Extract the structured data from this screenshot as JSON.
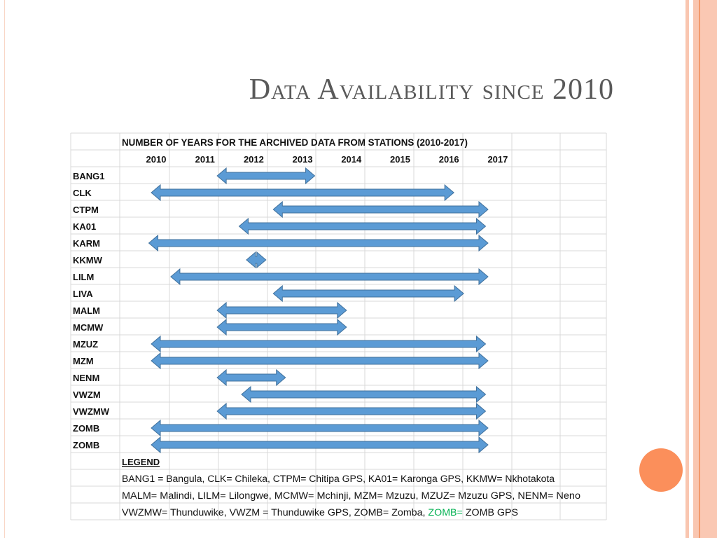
{
  "slide": {
    "title": "Data Availability since 2010",
    "accent_color": "#fb8f5b",
    "stripe_color": "#f9c6b0"
  },
  "chart_data": {
    "type": "gantt",
    "title": "NUMBER OF YEARS FOR THE ARCHIVED DATA FROM STATIONS (2010-2017)",
    "years": [
      "2010",
      "2011",
      "2012",
      "2013",
      "2014",
      "2015",
      "2016",
      "2017"
    ],
    "xlim": [
      2010,
      2017
    ],
    "grid": true,
    "bar_color": "#5b9bd5",
    "series": [
      {
        "station": "BANG1",
        "start": 2011.25,
        "end": 2013.25
      },
      {
        "station": "CLK",
        "start": 2009.9,
        "end": 2016.1
      },
      {
        "station": "CTPM",
        "start": 2012.4,
        "end": 2016.8
      },
      {
        "station": "KA01",
        "start": 2011.7,
        "end": 2016.75
      },
      {
        "station": "KARM",
        "start": 2009.85,
        "end": 2016.8
      },
      {
        "station": "KKMW",
        "start": 2011.85,
        "end": 2012.25
      },
      {
        "station": "LILM",
        "start": 2010.3,
        "end": 2016.8
      },
      {
        "station": "LIVA",
        "start": 2012.4,
        "end": 2016.3
      },
      {
        "station": "MALM",
        "start": 2011.25,
        "end": 2013.9
      },
      {
        "station": "MCMW",
        "start": 2011.25,
        "end": 2013.9
      },
      {
        "station": "MZUZ",
        "start": 2009.9,
        "end": 2016.75
      },
      {
        "station": "MZM",
        "start": 2009.9,
        "end": 2016.8
      },
      {
        "station": "NENM",
        "start": 2011.25,
        "end": 2012.65
      },
      {
        "station": "VWZM",
        "start": 2011.75,
        "end": 2016.75
      },
      {
        "station": "VWZMW",
        "start": 2011.25,
        "end": 2016.75
      },
      {
        "station": "ZOMB",
        "start": 2009.9,
        "end": 2016.8
      },
      {
        "station": "ZOMB",
        "start": 2009.9,
        "end": 2016.8
      }
    ],
    "legend": {
      "heading": "LEGEND",
      "lines": [
        [
          {
            "text": "BANG1 = Bangula, CLK= Chileka, CTPM= Chitipa GPS, KA01= Karonga GPS, KKMW= Nkhotakota"
          }
        ],
        [
          {
            "text": "MALM= Malindi, LILM= Lilongwe, MCMW= Mchinji, MZM= Mzuzu, MZUZ= Mzuzu GPS, NENM= Neno"
          }
        ],
        [
          {
            "text": "VWZMW= Thunduwike, VWZM = Thunduwike GPS, ZOMB= Zomba, "
          },
          {
            "text": "ZOMB=",
            "color": "#00b050"
          },
          {
            "text": " ZOMB GPS"
          }
        ]
      ]
    }
  }
}
